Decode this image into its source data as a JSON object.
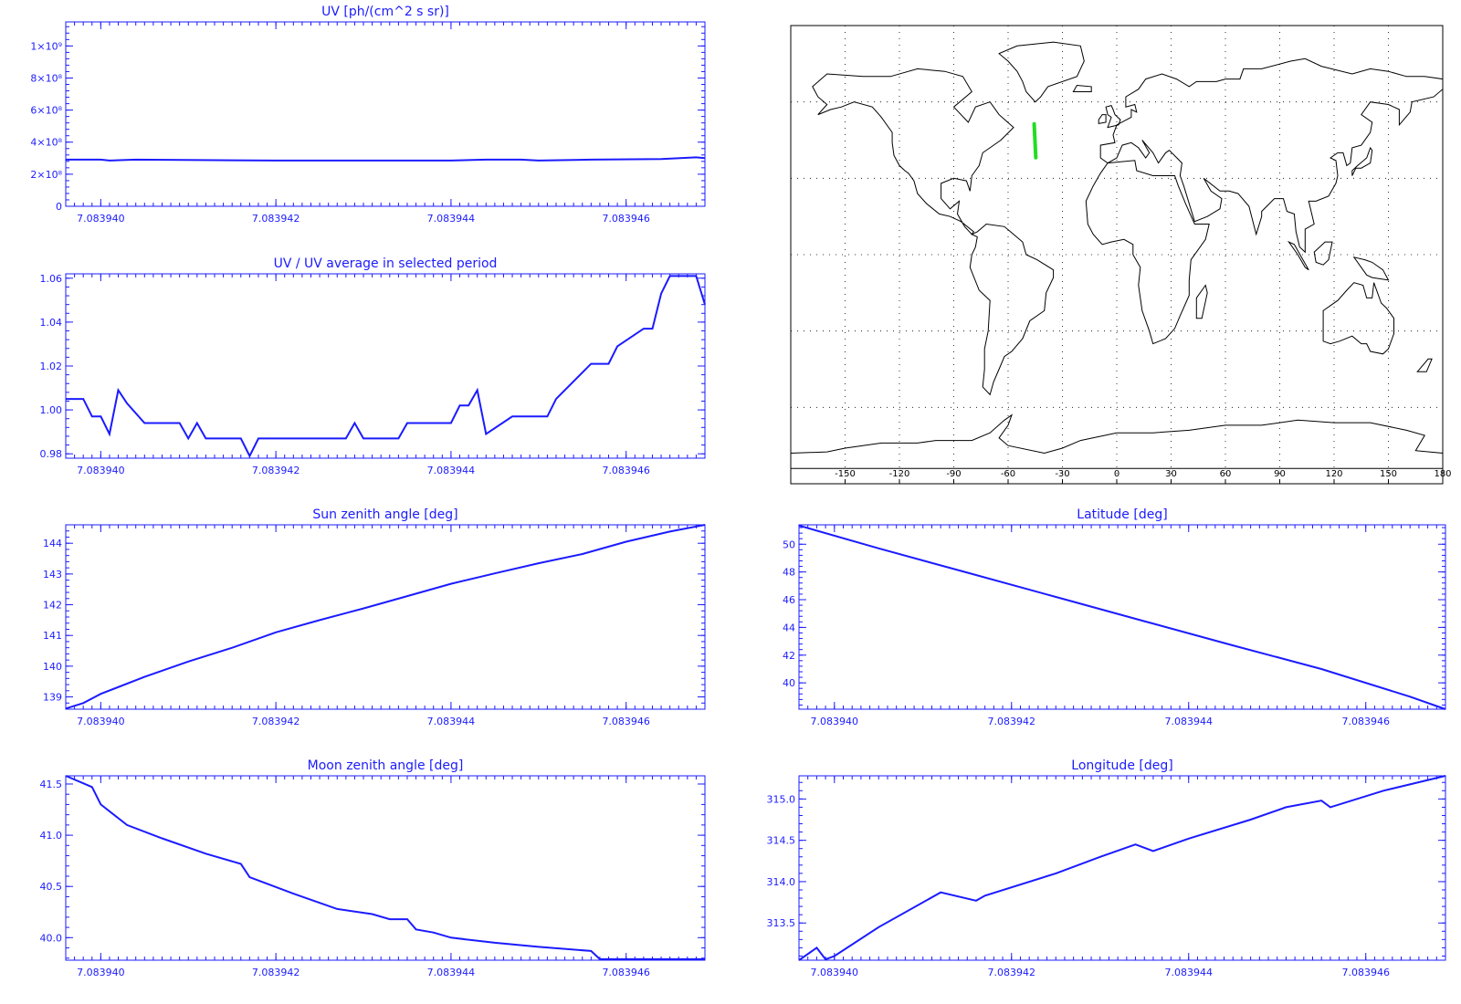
{
  "colors": {
    "plot": "#1b1bff",
    "track": "#22dd22",
    "map": "#000000"
  },
  "chart_data": [
    {
      "id": "uv",
      "type": "line",
      "title": "UV [ph/(cm^2 s sr)]",
      "xlim": [
        7.0839396,
        7.0839469
      ],
      "ylim": [
        0,
        1150000000
      ],
      "xticks": [
        "7.083940",
        "7.083942",
        "7.083944",
        "7.083946"
      ],
      "yticks": [
        "0",
        "2×10⁸",
        "4×10⁸",
        "6×10⁸",
        "8×10⁸",
        "1×10⁹"
      ],
      "ytick_values": [
        0,
        200000000,
        400000000,
        600000000,
        800000000,
        1000000000
      ],
      "x": [
        7.0839396,
        7.08394,
        7.0839401,
        7.0839404,
        7.083942,
        7.083944,
        7.0839444,
        7.0839448,
        7.083945,
        7.0839456,
        7.0839464,
        7.0839468,
        7.0839469
      ],
      "y": [
        291000000,
        291000000,
        285000000,
        291000000,
        285000000,
        285000000,
        291000000,
        291000000,
        285000000,
        291000000,
        295000000,
        305000000,
        300000000
      ]
    },
    {
      "id": "uvratio",
      "type": "line",
      "title": "UV / UV average in selected period",
      "xlim": [
        7.0839396,
        7.0839469
      ],
      "ylim": [
        0.978,
        1.062
      ],
      "xticks": [
        "7.083940",
        "7.083942",
        "7.083944",
        "7.083946"
      ],
      "yticks": [
        "0.98",
        "1.00",
        "1.02",
        "1.04",
        "1.06"
      ],
      "ytick_values": [
        0.98,
        1.0,
        1.02,
        1.04,
        1.06
      ],
      "x": [
        7.0839396,
        7.0839398,
        7.0839399,
        7.08394,
        7.0839401,
        7.0839402,
        7.0839403,
        7.0839405,
        7.0839409,
        7.083941,
        7.0839411,
        7.0839412,
        7.0839416,
        7.0839417,
        7.0839418,
        7.0839428,
        7.0839429,
        7.083943,
        7.0839434,
        7.0839435,
        7.083944,
        7.0839441,
        7.0839442,
        7.0839443,
        7.0839444,
        7.0839447,
        7.0839448,
        7.0839451,
        7.0839452,
        7.0839456,
        7.0839457,
        7.0839458,
        7.0839459,
        7.0839462,
        7.0839463,
        7.0839464,
        7.0839465,
        7.0839466,
        7.0839467,
        7.0839468,
        7.0839469
      ],
      "y": [
        1.005,
        1.005,
        0.997,
        0.997,
        0.989,
        1.009,
        1.003,
        0.994,
        0.994,
        0.987,
        0.994,
        0.987,
        0.987,
        0.979,
        0.987,
        0.987,
        0.994,
        0.987,
        0.987,
        0.994,
        0.994,
        1.002,
        1.002,
        1.009,
        0.989,
        0.997,
        0.997,
        0.997,
        1.005,
        1.021,
        1.021,
        1.021,
        1.029,
        1.037,
        1.037,
        1.053,
        1.061,
        1.061,
        1.061,
        1.061,
        1.048
      ]
    },
    {
      "id": "sza",
      "type": "line",
      "title": "Sun zenith angle [deg]",
      "xlim": [
        7.0839396,
        7.0839469
      ],
      "ylim": [
        138.6,
        144.6
      ],
      "xticks": [
        "7.083940",
        "7.083942",
        "7.083944",
        "7.083946"
      ],
      "yticks": [
        "139",
        "140",
        "141",
        "142",
        "143",
        "144"
      ],
      "ytick_values": [
        139,
        140,
        141,
        142,
        143,
        144
      ],
      "x": [
        7.0839396,
        7.0839398,
        7.08394,
        7.0839405,
        7.083941,
        7.0839415,
        7.0839418,
        7.083942,
        7.0839425,
        7.083943,
        7.0839435,
        7.083944,
        7.0839445,
        7.083945,
        7.0839455,
        7.083946,
        7.0839465,
        7.0839469
      ],
      "y": [
        138.62,
        138.8,
        139.1,
        139.65,
        140.15,
        140.6,
        140.9,
        141.1,
        141.5,
        141.88,
        142.28,
        142.68,
        143.02,
        143.35,
        143.65,
        144.05,
        144.38,
        144.6
      ]
    },
    {
      "id": "lat",
      "type": "line",
      "title": "Latitude [deg]",
      "xlim": [
        7.0839396,
        7.0839469
      ],
      "ylim": [
        38.1,
        51.4
      ],
      "xticks": [
        "7.083940",
        "7.083942",
        "7.083944",
        "7.083946"
      ],
      "yticks": [
        "40",
        "42",
        "44",
        "46",
        "48",
        "50"
      ],
      "ytick_values": [
        40,
        42,
        44,
        46,
        48,
        50
      ],
      "x": [
        7.0839396,
        7.0839405,
        7.0839415,
        7.0839425,
        7.0839435,
        7.0839445,
        7.0839455,
        7.0839465,
        7.0839469
      ],
      "y": [
        51.35,
        49.7,
        47.95,
        46.2,
        44.45,
        42.7,
        41.0,
        39.0,
        38.1
      ]
    },
    {
      "id": "mza",
      "type": "line",
      "title": "Moon zenith angle [deg]",
      "xlim": [
        7.0839396,
        7.0839469
      ],
      "ylim": [
        39.78,
        41.58
      ],
      "xticks": [
        "7.083940",
        "7.083942",
        "7.083944",
        "7.083946"
      ],
      "yticks": [
        "40.0",
        "40.5",
        "41.0",
        "41.5"
      ],
      "ytick_values": [
        40.0,
        40.5,
        41.0,
        41.5
      ],
      "x": [
        7.0839396,
        7.0839399,
        7.08394,
        7.0839403,
        7.0839407,
        7.0839412,
        7.0839416,
        7.0839417,
        7.0839422,
        7.0839427,
        7.0839431,
        7.0839433,
        7.0839435,
        7.0839436,
        7.0839438,
        7.083944,
        7.0839445,
        7.083945,
        7.0839456,
        7.0839457,
        7.0839462,
        7.0839469
      ],
      "y": [
        41.58,
        41.47,
        41.3,
        41.1,
        40.97,
        40.82,
        40.72,
        40.59,
        40.43,
        40.28,
        40.23,
        40.18,
        40.18,
        40.08,
        40.05,
        40.0,
        39.95,
        39.91,
        39.87,
        39.79,
        39.79,
        39.79
      ]
    },
    {
      "id": "lon",
      "type": "line",
      "title": "Longitude [deg]",
      "xlim": [
        7.0839396,
        7.0839469
      ],
      "ylim": [
        313.05,
        315.28
      ],
      "xticks": [
        "7.083940",
        "7.083942",
        "7.083944",
        "7.083946"
      ],
      "yticks": [
        "313.5",
        "314.0",
        "314.5",
        "315.0"
      ],
      "ytick_values": [
        313.5,
        314.0,
        314.5,
        315.0
      ],
      "x": [
        7.0839396,
        7.0839398,
        7.0839399,
        7.08394,
        7.0839405,
        7.0839412,
        7.0839416,
        7.0839417,
        7.0839425,
        7.083943,
        7.0839434,
        7.0839436,
        7.083944,
        7.0839447,
        7.0839451,
        7.0839455,
        7.0839456,
        7.0839462,
        7.0839469
      ],
      "y": [
        313.05,
        313.2,
        313.06,
        313.1,
        313.45,
        313.87,
        313.77,
        313.83,
        314.1,
        314.3,
        314.45,
        314.37,
        314.52,
        314.75,
        314.9,
        314.98,
        314.9,
        315.1,
        315.28
      ]
    }
  ],
  "map": {
    "lon_ticks": [
      "-150",
      "-120",
      "-90",
      "-60",
      "-30",
      "0",
      "30",
      "60",
      "90",
      "120",
      "150",
      "180"
    ],
    "lon_tick_values": [
      -150,
      -120,
      -90,
      -60,
      -30,
      0,
      30,
      60,
      90,
      120,
      150,
      180
    ],
    "lat_grid": [
      60,
      30,
      0,
      -30,
      -60
    ],
    "track": [
      [
        -45.6,
        51.35
      ],
      [
        -44.7,
        38.1
      ]
    ]
  }
}
